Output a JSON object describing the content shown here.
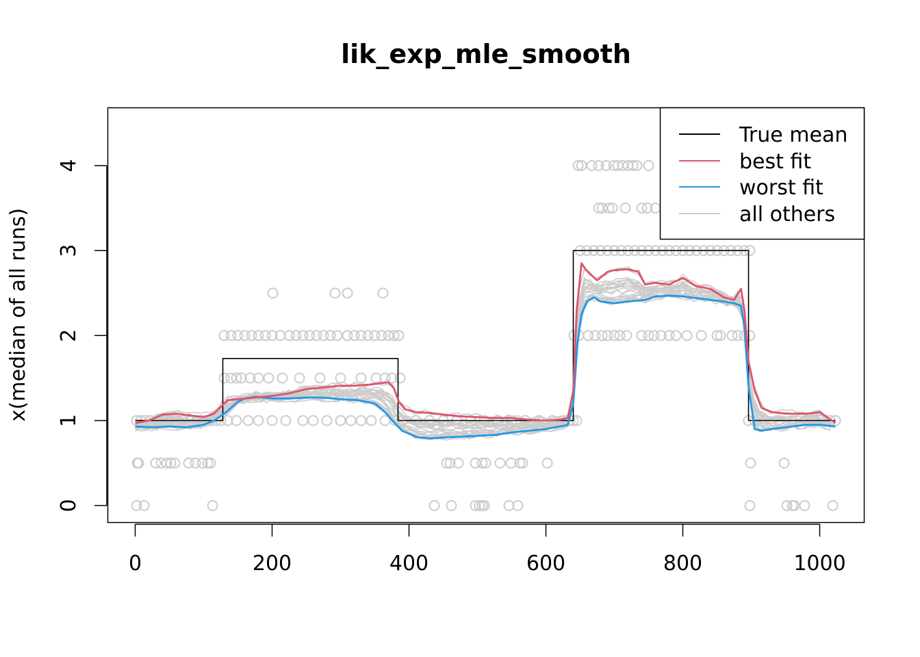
{
  "chart_data": {
    "type": "line",
    "title": "lik_exp_mle_smooth",
    "xlabel": "",
    "ylabel": "x(median of all runs)",
    "xlim": [
      -40,
      1065
    ],
    "ylim": [
      -0.2,
      4.68
    ],
    "x_ticks": [
      0,
      200,
      400,
      600,
      800,
      1000
    ],
    "y_ticks": [
      0,
      1,
      2,
      3,
      4
    ],
    "legend_position": "top-right",
    "colors": {
      "true_mean": "#000000",
      "best_fit": "#DF536B",
      "worst_fit": "#2297E6",
      "others": "#CCCCCC"
    },
    "legend": [
      {
        "label": "True mean",
        "series": "true_mean"
      },
      {
        "label": "best fit",
        "series": "best_fit"
      },
      {
        "label": "worst fit",
        "series": "worst_fit"
      },
      {
        "label": "all others",
        "series": "others"
      }
    ],
    "series": [
      {
        "name": "True mean",
        "key": "true_mean",
        "x": [
          0,
          128,
          128,
          384,
          384,
          640,
          640,
          896,
          896,
          1023
        ],
        "y": [
          1,
          1,
          1.73,
          1.73,
          1,
          1,
          3,
          3,
          1,
          1
        ]
      },
      {
        "name": "best fit",
        "key": "best_fit",
        "x": [
          0,
          20,
          40,
          60,
          80,
          100,
          115,
          125,
          135,
          150,
          175,
          200,
          225,
          250,
          275,
          300,
          320,
          340,
          360,
          370,
          378,
          385,
          395,
          410,
          430,
          450,
          475,
          500,
          525,
          550,
          575,
          600,
          620,
          632,
          640,
          645,
          652,
          658,
          665,
          675,
          690,
          700,
          720,
          735,
          745,
          760,
          780,
          800,
          820,
          840,
          860,
          875,
          885,
          890,
          896,
          905,
          915,
          930,
          950,
          980,
          1000,
          1023
        ],
        "y": [
          0.97,
          1.0,
          1.07,
          1.08,
          1.06,
          1.04,
          1.08,
          1.16,
          1.24,
          1.25,
          1.27,
          1.29,
          1.32,
          1.37,
          1.39,
          1.41,
          1.41,
          1.42,
          1.44,
          1.45,
          1.38,
          1.22,
          1.13,
          1.1,
          1.09,
          1.07,
          1.05,
          1.04,
          1.03,
          1.03,
          1.01,
          1.0,
          1.01,
          1.03,
          1.35,
          2.3,
          2.85,
          2.78,
          2.72,
          2.65,
          2.75,
          2.77,
          2.78,
          2.75,
          2.6,
          2.62,
          2.6,
          2.68,
          2.58,
          2.55,
          2.45,
          2.42,
          2.55,
          2.3,
          1.7,
          1.35,
          1.15,
          1.1,
          1.08,
          1.08,
          1.1,
          0.97
        ]
      },
      {
        "name": "worst fit",
        "key": "worst_fit",
        "x": [
          0,
          25,
          50,
          75,
          100,
          115,
          130,
          140,
          150,
          160,
          175,
          200,
          225,
          250,
          275,
          300,
          325,
          350,
          365,
          378,
          390,
          410,
          430,
          450,
          475,
          500,
          525,
          550,
          575,
          600,
          620,
          632,
          640,
          646,
          652,
          660,
          670,
          680,
          700,
          720,
          745,
          760,
          780,
          800,
          820,
          840,
          860,
          875,
          885,
          890,
          896,
          905,
          915,
          930,
          950,
          980,
          1000,
          1023
        ],
        "y": [
          0.93,
          0.92,
          0.93,
          0.92,
          0.95,
          1.0,
          1.08,
          1.15,
          1.22,
          1.26,
          1.28,
          1.26,
          1.26,
          1.27,
          1.27,
          1.25,
          1.24,
          1.2,
          1.1,
          0.98,
          0.88,
          0.81,
          0.79,
          0.8,
          0.81,
          0.82,
          0.83,
          0.86,
          0.88,
          0.9,
          0.93,
          0.95,
          1.2,
          1.9,
          2.25,
          2.4,
          2.45,
          2.4,
          2.38,
          2.4,
          2.42,
          2.46,
          2.47,
          2.46,
          2.44,
          2.42,
          2.4,
          2.38,
          2.35,
          2.1,
          1.4,
          0.9,
          0.88,
          0.9,
          0.92,
          0.95,
          0.95,
          0.93
        ]
      },
      {
        "name": "all others",
        "key": "others",
        "band_count": 24
      },
      {
        "name": "observations",
        "key": "observations",
        "points": [
          [
            2,
            1
          ],
          [
            8,
            1
          ],
          [
            15,
            1
          ],
          [
            22,
            1
          ],
          [
            30,
            1
          ],
          [
            38,
            1
          ],
          [
            45,
            1
          ],
          [
            52,
            1
          ],
          [
            60,
            1
          ],
          [
            70,
            1
          ],
          [
            80,
            1
          ],
          [
            90,
            1
          ],
          [
            100,
            1
          ],
          [
            110,
            1
          ],
          [
            118,
            1
          ],
          [
            125,
            1
          ],
          [
            3,
            0.5
          ],
          [
            5,
            0.5
          ],
          [
            30,
            0.5
          ],
          [
            38,
            0.5
          ],
          [
            46,
            0.5
          ],
          [
            52,
            0.5
          ],
          [
            58,
            0.5
          ],
          [
            78,
            0.5
          ],
          [
            88,
            0.5
          ],
          [
            98,
            0.5
          ],
          [
            106,
            0.5
          ],
          [
            110,
            0.5
          ],
          [
            2,
            0
          ],
          [
            13,
            0
          ],
          [
            113,
            0
          ],
          [
            130,
            1.5
          ],
          [
            140,
            1.5
          ],
          [
            148,
            1.5
          ],
          [
            155,
            1.5
          ],
          [
            168,
            1.5
          ],
          [
            180,
            1.5
          ],
          [
            195,
            1.5
          ],
          [
            215,
            1.5
          ],
          [
            240,
            1.5
          ],
          [
            270,
            1.5
          ],
          [
            300,
            1.5
          ],
          [
            330,
            1.5
          ],
          [
            352,
            1.5
          ],
          [
            365,
            1.5
          ],
          [
            375,
            1.5
          ],
          [
            387,
            1.5
          ],
          [
            135,
            1
          ],
          [
            148,
            1
          ],
          [
            165,
            1
          ],
          [
            180,
            1
          ],
          [
            200,
            1
          ],
          [
            220,
            1
          ],
          [
            245,
            1
          ],
          [
            260,
            1
          ],
          [
            280,
            1
          ],
          [
            300,
            1
          ],
          [
            315,
            1
          ],
          [
            330,
            1
          ],
          [
            345,
            1
          ],
          [
            365,
            1
          ],
          [
            380,
            1
          ],
          [
            130,
            2
          ],
          [
            140,
            2
          ],
          [
            150,
            2
          ],
          [
            160,
            2
          ],
          [
            170,
            2
          ],
          [
            180,
            2
          ],
          [
            190,
            2
          ],
          [
            200,
            2
          ],
          [
            212,
            2
          ],
          [
            225,
            2
          ],
          [
            235,
            2
          ],
          [
            245,
            2
          ],
          [
            255,
            2
          ],
          [
            265,
            2
          ],
          [
            275,
            2
          ],
          [
            285,
            2
          ],
          [
            295,
            2
          ],
          [
            310,
            2
          ],
          [
            320,
            2
          ],
          [
            330,
            2
          ],
          [
            340,
            2
          ],
          [
            350,
            2
          ],
          [
            360,
            2
          ],
          [
            370,
            2
          ],
          [
            378,
            2
          ],
          [
            385,
            2
          ],
          [
            201,
            2.5
          ],
          [
            292,
            2.5
          ],
          [
            310,
            2.5
          ],
          [
            362,
            2.5
          ],
          [
            390,
            1
          ],
          [
            410,
            1
          ],
          [
            430,
            1
          ],
          [
            450,
            1
          ],
          [
            470,
            1
          ],
          [
            490,
            1
          ],
          [
            510,
            1
          ],
          [
            530,
            1
          ],
          [
            550,
            1
          ],
          [
            570,
            1
          ],
          [
            590,
            1
          ],
          [
            610,
            1
          ],
          [
            625,
            1
          ],
          [
            635,
            1
          ],
          [
            455,
            0.5
          ],
          [
            460,
            0.5
          ],
          [
            472,
            0.5
          ],
          [
            497,
            0.5
          ],
          [
            507,
            0.5
          ],
          [
            512,
            0.5
          ],
          [
            533,
            0.5
          ],
          [
            549,
            0.5
          ],
          [
            562,
            0.5
          ],
          [
            566,
            0.5
          ],
          [
            602,
            0.5
          ],
          [
            437,
            0
          ],
          [
            462,
            0
          ],
          [
            497,
            0
          ],
          [
            503,
            0
          ],
          [
            507,
            0
          ],
          [
            510,
            0
          ],
          [
            546,
            0
          ],
          [
            559,
            0
          ],
          [
            640,
            1
          ],
          [
            645,
            1
          ],
          [
            650,
            3
          ],
          [
            660,
            3
          ],
          [
            670,
            3
          ],
          [
            680,
            3
          ],
          [
            690,
            3
          ],
          [
            700,
            3
          ],
          [
            710,
            3
          ],
          [
            720,
            3
          ],
          [
            730,
            3
          ],
          [
            740,
            3
          ],
          [
            750,
            3
          ],
          [
            760,
            3
          ],
          [
            770,
            3
          ],
          [
            780,
            3
          ],
          [
            790,
            3
          ],
          [
            800,
            3
          ],
          [
            810,
            3
          ],
          [
            820,
            3
          ],
          [
            830,
            3
          ],
          [
            840,
            3
          ],
          [
            850,
            3
          ],
          [
            860,
            3
          ],
          [
            870,
            3
          ],
          [
            880,
            3
          ],
          [
            890,
            3
          ],
          [
            898,
            3
          ],
          [
            647,
            4
          ],
          [
            652,
            4
          ],
          [
            667,
            4
          ],
          [
            677,
            4
          ],
          [
            688,
            4
          ],
          [
            699,
            4
          ],
          [
            705,
            4
          ],
          [
            712,
            4
          ],
          [
            720,
            4
          ],
          [
            727,
            4
          ],
          [
            733,
            4
          ],
          [
            750,
            4
          ],
          [
            677,
            3.5
          ],
          [
            682,
            3.5
          ],
          [
            692,
            3.5
          ],
          [
            697,
            3.5
          ],
          [
            716,
            3.5
          ],
          [
            740,
            3.5
          ],
          [
            748,
            3.5
          ],
          [
            760,
            3.5
          ],
          [
            641,
            2
          ],
          [
            648,
            2
          ],
          [
            662,
            2
          ],
          [
            672,
            2
          ],
          [
            682,
            2
          ],
          [
            690,
            2
          ],
          [
            700,
            2
          ],
          [
            708,
            2
          ],
          [
            718,
            2
          ],
          [
            740,
            2
          ],
          [
            750,
            2
          ],
          [
            758,
            2
          ],
          [
            768,
            2
          ],
          [
            780,
            2
          ],
          [
            790,
            2
          ],
          [
            806,
            2
          ],
          [
            827,
            2
          ],
          [
            850,
            2
          ],
          [
            855,
            2
          ],
          [
            872,
            2
          ],
          [
            880,
            2
          ],
          [
            890,
            2
          ],
          [
            898,
            2
          ],
          [
            896,
            1
          ],
          [
            905,
            1
          ],
          [
            920,
            1
          ],
          [
            940,
            1
          ],
          [
            960,
            1
          ],
          [
            980,
            1
          ],
          [
            1000,
            1
          ],
          [
            1015,
            1
          ],
          [
            1023,
            1
          ],
          [
            899,
            0.5
          ],
          [
            948,
            0.5
          ],
          [
            898,
            0
          ],
          [
            952,
            0
          ],
          [
            960,
            0
          ],
          [
            963,
            0
          ],
          [
            978,
            0
          ],
          [
            1019,
            0
          ]
        ]
      }
    ]
  }
}
